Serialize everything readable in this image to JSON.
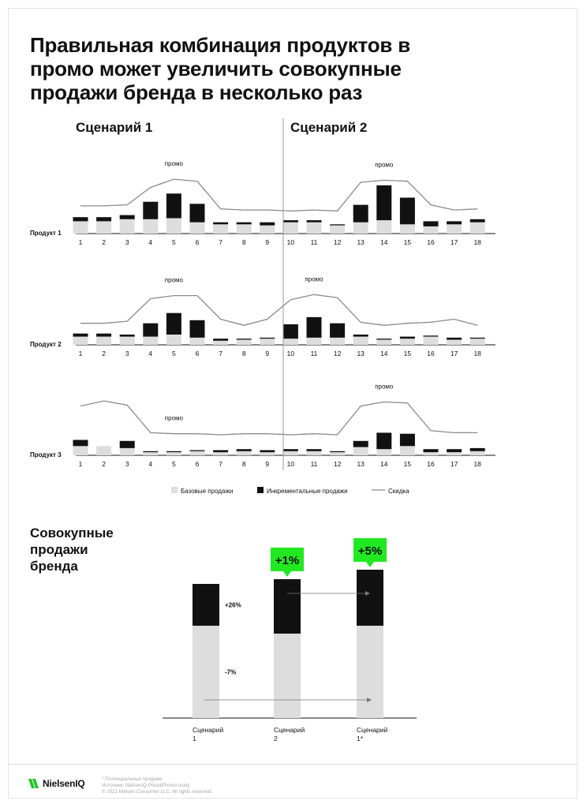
{
  "title_lines": [
    "Правильная комбинация продуктов в",
    "промо может увеличить совокупные",
    "продажи бренда в несколько раз"
  ],
  "scenario_headers": [
    "Сценарий 1",
    "Сценарий 2"
  ],
  "colors": {
    "base": "#dddddd",
    "incremental": "#111111",
    "line": "#8a8a8a",
    "callout": "#22e822",
    "divider": "#999999"
  },
  "chart_data": [
    {
      "type": "bar",
      "subtype": "stacked-bar-with-line",
      "row_label": "Продукт 1",
      "annotations": [
        {
          "text": "промо",
          "at_week": 5
        },
        {
          "text": "промо",
          "at_week": 14
        }
      ],
      "categories": [
        "1",
        "2",
        "3",
        "4",
        "5",
        "6",
        "7",
        "8",
        "9",
        "10",
        "11",
        "12",
        "13",
        "14",
        "15",
        "16",
        "17",
        "18"
      ],
      "series": [
        {
          "name": "Базовые продажи",
          "values": [
            12,
            12,
            14,
            14,
            15,
            11,
            9,
            9,
            8,
            11,
            11,
            8,
            11,
            13,
            9,
            7,
            9,
            11
          ]
        },
        {
          "name": "Инкрементальные продажи",
          "values": [
            4,
            4,
            4,
            17,
            24,
            18,
            2,
            2,
            3,
            2,
            2,
            1,
            17,
            34,
            26,
            5,
            3,
            3
          ]
        },
        {
          "name": "Скидка",
          "kind": "line",
          "values": [
            27,
            27,
            28,
            45,
            53,
            51,
            24,
            23,
            23,
            22,
            23,
            22,
            50,
            52,
            51,
            28,
            23,
            24
          ]
        }
      ],
      "ylim": [
        0,
        70
      ]
    },
    {
      "type": "bar",
      "subtype": "stacked-bar-with-line",
      "row_label": "Продукт 2",
      "annotations": [
        {
          "text": "промо",
          "at_week": 5
        },
        {
          "text": "промо",
          "at_week": 11
        }
      ],
      "categories": [
        "1",
        "2",
        "3",
        "4",
        "5",
        "6",
        "7",
        "8",
        "9",
        "10",
        "11",
        "12",
        "13",
        "14",
        "15",
        "16",
        "17",
        "18"
      ],
      "series": [
        {
          "name": "Базовые продажи",
          "values": [
            8,
            8,
            8,
            8,
            10,
            7,
            4,
            5,
            6,
            6,
            7,
            7,
            8,
            5,
            6,
            8,
            5,
            6
          ]
        },
        {
          "name": "Инкрементальные продажи",
          "values": [
            3,
            3,
            2,
            13,
            21,
            17,
            2,
            1,
            1,
            14,
            20,
            14,
            2,
            1,
            2,
            1,
            2,
            1
          ]
        },
        {
          "name": "Скидка",
          "kind": "line",
          "values": [
            21,
            21,
            23,
            45,
            48,
            48,
            25,
            19,
            25,
            44,
            49,
            46,
            22,
            19,
            21,
            22,
            25,
            19
          ]
        }
      ],
      "ylim": [
        0,
        70
      ]
    },
    {
      "type": "bar",
      "subtype": "stacked-bar-with-line",
      "row_label": "Продукт 3",
      "annotations": [
        {
          "text": "промо",
          "at_week": 5
        },
        {
          "text": "промо",
          "at_week": 14
        }
      ],
      "categories": [
        "1",
        "2",
        "3",
        "4",
        "5",
        "6",
        "7",
        "8",
        "9",
        "10",
        "11",
        "12",
        "13",
        "14",
        "15",
        "16",
        "17",
        "18"
      ],
      "series": [
        {
          "name": "Базовые продажи",
          "values": [
            9,
            9,
            7,
            3,
            3,
            4,
            3,
            4,
            3,
            4,
            4,
            3,
            8,
            6,
            9,
            3,
            3,
            4
          ]
        },
        {
          "name": "Инкрементальные продажи",
          "values": [
            6,
            0,
            7,
            1,
            1,
            1,
            2,
            2,
            2,
            2,
            2,
            1,
            6,
            16,
            12,
            3,
            3,
            3
          ]
        },
        {
          "name": "Скидка",
          "kind": "line",
          "values": [
            48,
            53,
            49,
            22,
            21,
            21,
            20,
            21,
            21,
            20,
            21,
            20,
            48,
            52,
            51,
            24,
            22,
            22
          ]
        }
      ],
      "ylim": [
        0,
        70
      ]
    },
    {
      "type": "bar",
      "subtype": "stacked-bar",
      "title": "Совокупные продажи бренда",
      "categories": [
        "Сценарий 1",
        "Сценарий 2",
        "Сценарий 1*"
      ],
      "series": [
        {
          "name": "Базовые продажи",
          "values": [
            117,
            107,
            117
          ]
        },
        {
          "name": "Инкрементальные продажи",
          "values": [
            53,
            69,
            71
          ]
        }
      ],
      "data_labels": [
        {
          "text": "+26%",
          "target": "incremental",
          "category": "Сценарий 1"
        },
        {
          "text": "-7%",
          "target": "base",
          "category": "Сценарий 1"
        }
      ],
      "callouts": [
        {
          "text": "+1%",
          "category": "Сценарий 2"
        },
        {
          "text": "+5%",
          "category": "Сценарий 1*"
        }
      ],
      "ylim": [
        0,
        180
      ]
    }
  ],
  "total_title_lines": [
    "Совокупные",
    "продажи",
    "бренда"
  ],
  "footer": {
    "logo_text": "NielsenIQ",
    "notes": [
      "* Потенциальные продажи",
      "Источник: NielsenIQ Price&Promo study",
      "© 2021 Nielsen Consumer LLC. All rights reserved."
    ]
  }
}
